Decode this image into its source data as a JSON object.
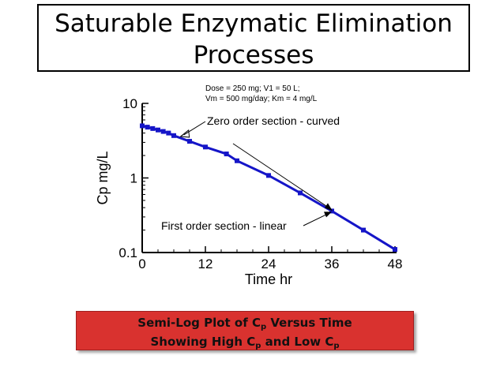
{
  "slide": {
    "title_line1": "Saturable Enzymatic Elimination",
    "title_line2": "Processes",
    "caption_line1_a": "Semi-Log Plot of C",
    "caption_line1_sub": "p",
    "caption_line1_b": " Versus Time",
    "caption_line2_a": "Showing High C",
    "caption_line2_sub1": "p",
    "caption_line2_b": " and Low C",
    "caption_line2_sub2": "p",
    "caption_color": "#d9322f"
  },
  "chart_data": {
    "type": "line",
    "scale_y": "log",
    "xlabel": "Time hr",
    "ylabel": "Cp mg/L",
    "xlim": [
      0,
      48
    ],
    "ylim": [
      0.1,
      10
    ],
    "x_ticks": [
      "0",
      "12",
      "24",
      "36",
      "48"
    ],
    "y_ticks": [
      "0.1",
      "1",
      "10"
    ],
    "params_line1": "Dose = 250 mg; V1 = 50 L;",
    "params_line2": "Vm = 500 mg/day; Km = 4 mg/L",
    "annotations": [
      {
        "text": "Zero order section - curved",
        "target_x": 7,
        "target_y": 3.6
      },
      {
        "text": "First order section - linear",
        "target_x": 36,
        "target_y": 0.36
      }
    ],
    "series_color": "#1515c8",
    "x": [
      0,
      1,
      2,
      3,
      4,
      5,
      6,
      9,
      12,
      16,
      18,
      24,
      30,
      36,
      42,
      48
    ],
    "y": [
      5.0,
      4.8,
      4.6,
      4.4,
      4.2,
      4.0,
      3.7,
      3.1,
      2.6,
      2.1,
      1.7,
      1.08,
      0.63,
      0.36,
      0.2,
      0.11
    ]
  }
}
